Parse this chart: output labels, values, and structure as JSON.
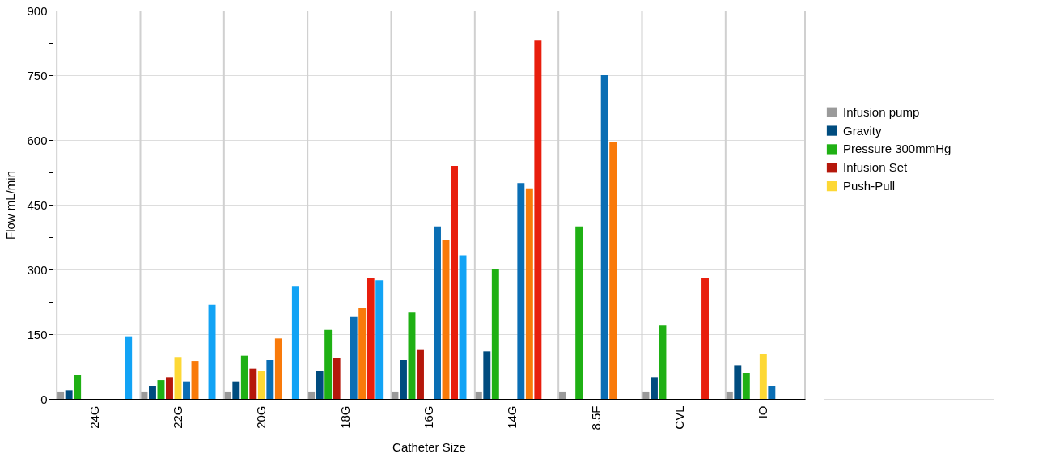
{
  "chart_data": {
    "type": "bar",
    "xlabel": "Catheter Size",
    "ylabel": "Flow mL/min",
    "categories": [
      "24G",
      "22G",
      "20G",
      "18G",
      "16G",
      "14G",
      "8.5F",
      "CVL",
      "IO"
    ],
    "series": [
      {
        "name": "Infusion pump",
        "color": "#9a9a9a",
        "values": [
          17,
          17,
          17,
          17,
          17,
          17,
          17,
          17,
          17
        ]
      },
      {
        "name": "Gravity",
        "color": "#004c7f",
        "values": [
          20,
          30,
          40,
          65,
          90,
          110,
          null,
          50,
          78
        ]
      },
      {
        "name": "Pressure 300mmHg",
        "color": "#1fb014",
        "values": [
          55,
          43,
          100,
          160,
          200,
          300,
          400,
          170,
          60
        ]
      },
      {
        "name": "Infusion Set",
        "color": "#b5170b",
        "values": [
          null,
          50,
          70,
          95,
          115,
          null,
          null,
          null,
          null
        ]
      },
      {
        "name": "Push-Pull",
        "color": "#fdd835",
        "values": [
          null,
          97,
          65,
          null,
          null,
          null,
          null,
          null,
          105
        ]
      },
      {
        "color": "#0a6eb4",
        "values": [
          null,
          40,
          90,
          190,
          400,
          500,
          750,
          null,
          30
        ]
      },
      {
        "color": "#f97a0a",
        "values": [
          null,
          88,
          140,
          210,
          368,
          488,
          596,
          null,
          null
        ]
      },
      {
        "color": "#e81e0d",
        "values": [
          null,
          null,
          null,
          280,
          540,
          830,
          null,
          280,
          null
        ]
      },
      {
        "color": "#12a3f5",
        "values": [
          145,
          218,
          260,
          275,
          333,
          null,
          null,
          null,
          null
        ]
      }
    ],
    "ylim": [
      0,
      900
    ],
    "yticks": [
      0,
      {
        "value": 75,
        "label": null
      },
      150,
      {
        "value": 225,
        "label": null
      },
      300,
      {
        "value": 375,
        "label": null
      },
      450,
      {
        "value": 525,
        "label": null
      },
      600,
      {
        "value": 675,
        "label": null
      },
      750,
      {
        "value": 825,
        "label": null
      },
      900
    ],
    "grid": true,
    "legend": "right"
  }
}
